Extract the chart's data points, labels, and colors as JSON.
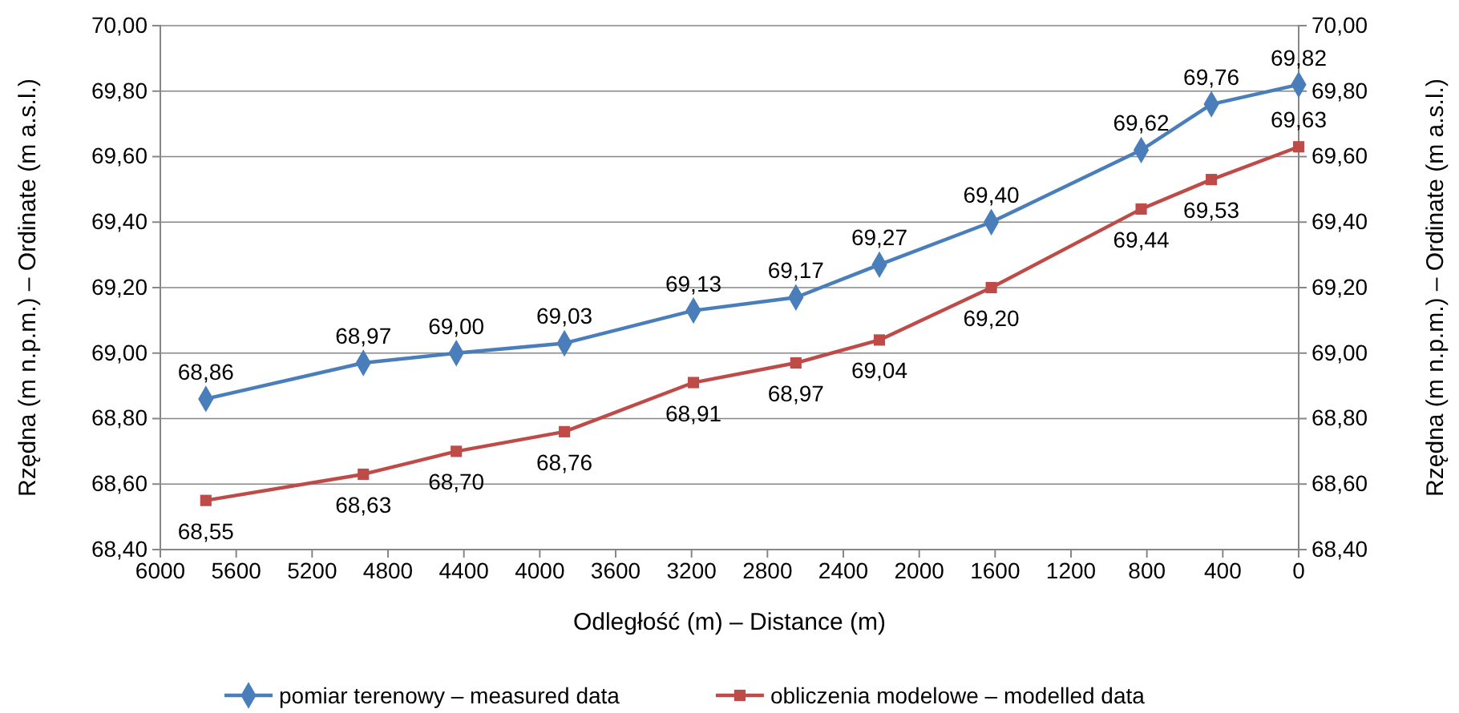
{
  "chart_data": {
    "type": "line",
    "xlabel": "Odległość (m) – Distance (m)",
    "ylabel": "Rzędna (m n.p.m.) – Ordinate (m a.s.l.)",
    "y2label": "Rzędna (m n.p.m.) – Ordinate (m a.s.l.)",
    "xlim": [
      6000,
      0
    ],
    "xticks": [
      6000,
      5600,
      5200,
      4800,
      4400,
      4000,
      3600,
      3200,
      2800,
      2400,
      2000,
      1600,
      1200,
      800,
      400,
      0
    ],
    "ylim": [
      68.4,
      70
    ],
    "yticks": [
      {
        "value": 68.4,
        "label": "68,40"
      },
      {
        "value": 68.6,
        "label": "68,60"
      },
      {
        "value": 68.8,
        "label": "68,80"
      },
      {
        "value": 69,
        "label": "69,00"
      },
      {
        "value": 69.2,
        "label": "69,20"
      },
      {
        "value": 69.4,
        "label": "69,40"
      },
      {
        "value": 69.6,
        "label": "69,60"
      },
      {
        "value": 69.8,
        "label": "69,80"
      },
      {
        "value": 70,
        "label": "70,00"
      }
    ],
    "y2lim": [
      68.4,
      70
    ],
    "y2ticks": [
      {
        "value": 68.4,
        "label": "68,40"
      },
      {
        "value": 68.6,
        "label": "68,60"
      },
      {
        "value": 68.8,
        "label": "68,80"
      },
      {
        "value": 69,
        "label": "69,00"
      },
      {
        "value": 69.2,
        "label": "69,20"
      },
      {
        "value": 69.4,
        "label": "69,40"
      },
      {
        "value": 69.6,
        "label": "69,60"
      },
      {
        "value": 69.8,
        "label": "69,80"
      },
      {
        "value": 70,
        "label": "70,00"
      }
    ],
    "x": [
      5760,
      4930,
      4440,
      3870,
      3190,
      2650,
      2210,
      1620,
      830,
      460,
      0
    ],
    "grid": "y",
    "legend": "bottom",
    "series": [
      {
        "name": "pomiar terenowy – measured data",
        "color": "#4a7ebb",
        "marker": "diamond",
        "values": [
          68.86,
          68.97,
          69.0,
          69.03,
          69.13,
          69.17,
          69.27,
          69.4,
          69.62,
          69.76,
          69.82
        ],
        "value_labels": [
          "68,86",
          "68,97",
          "69,00",
          "69,03",
          "69,13",
          "69,17",
          "69,27",
          "69,40",
          "69,62",
          "69,76",
          "69,82"
        ]
      },
      {
        "name": "obliczenia modelowe – modelled data",
        "color": "#be4b48",
        "marker": "square",
        "values": [
          68.55,
          68.63,
          68.7,
          68.76,
          68.91,
          68.97,
          69.04,
          69.2,
          69.44,
          69.53,
          69.63
        ],
        "value_labels": [
          "68,55",
          "68,63",
          "68,70",
          "68,76",
          "68,91",
          "68,97",
          "69,04",
          "69,20",
          "69,44",
          "69,53",
          "69,63"
        ]
      }
    ]
  }
}
